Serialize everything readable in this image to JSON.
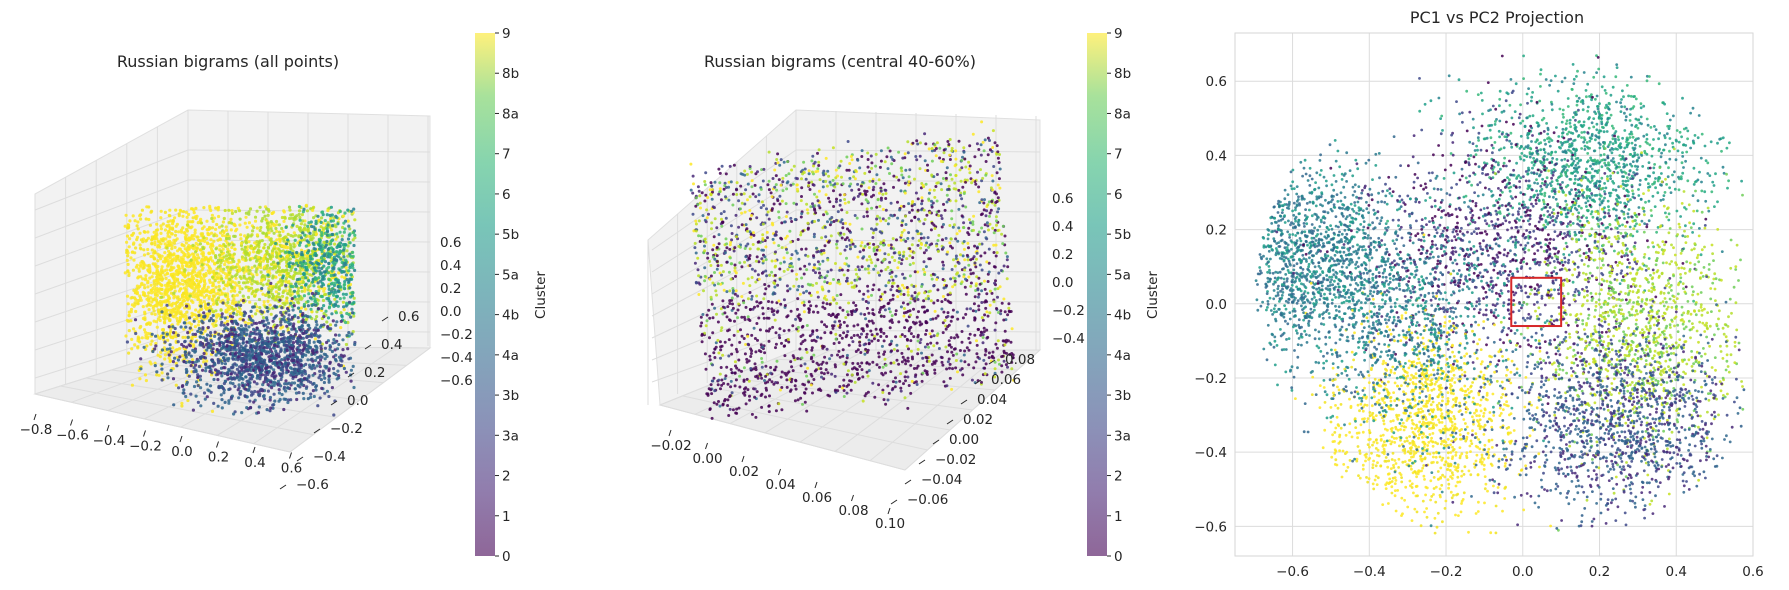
{
  "chart_data": [
    {
      "type": "scatter",
      "title": "Russian bigrams (all points)",
      "projection": "3d",
      "x_ticks": [
        "−0.8",
        "−0.6",
        "−0.4",
        "−0.2",
        "0.0",
        "0.2",
        "0.4",
        "0.6"
      ],
      "y_ticks": [
        "−0.6",
        "−0.4",
        "−0.2",
        "0.0",
        "0.2",
        "0.4",
        "0.6"
      ],
      "z_ticks": [
        "−0.6",
        "−0.4",
        "−0.2",
        "0.0",
        "0.2",
        "0.4",
        "0.6"
      ],
      "xlim": [
        -0.8,
        0.6
      ],
      "ylim": [
        -0.6,
        0.6
      ],
      "zlim": [
        -0.6,
        0.6
      ],
      "colorbar": {
        "label": "Cluster",
        "ticks": [
          "0",
          "1",
          "2",
          "3a",
          "3b",
          "4a",
          "4b",
          "5a",
          "5b",
          "6",
          "7",
          "8a",
          "8b",
          "9"
        ],
        "colormap": "viridis"
      },
      "grid": true
    },
    {
      "type": "scatter",
      "title": "Russian bigrams (central 40-60%)",
      "projection": "3d",
      "x_ticks": [
        "−0.02",
        "0.00",
        "0.02",
        "0.04",
        "0.06",
        "0.08",
        "0.10"
      ],
      "y_ticks": [
        "−0.06",
        "−0.04",
        "−0.02",
        "0.00",
        "0.02",
        "0.04",
        "0.06",
        "0.08"
      ],
      "z_ticks": [
        "−0.4",
        "−0.2",
        "0.0",
        "0.2",
        "0.4",
        "0.6"
      ],
      "xlim": [
        -0.02,
        0.1
      ],
      "ylim": [
        -0.06,
        0.08
      ],
      "zlim": [
        -0.4,
        0.6
      ],
      "colorbar": {
        "label": "Cluster",
        "ticks": [
          "0",
          "1",
          "2",
          "3a",
          "3b",
          "4a",
          "4b",
          "5a",
          "5b",
          "6",
          "7",
          "8a",
          "8b",
          "9"
        ],
        "colormap": "viridis"
      },
      "grid": true
    },
    {
      "type": "scatter",
      "title": "PC1 vs PC2 Projection",
      "x_ticks": [
        "−0.6",
        "−0.4",
        "−0.2",
        "0.0",
        "0.2",
        "0.4",
        "0.6"
      ],
      "y_ticks": [
        "−0.6",
        "−0.4",
        "−0.2",
        "0.0",
        "0.2",
        "0.4",
        "0.6"
      ],
      "xlim": [
        -0.75,
        0.6
      ],
      "ylim": [
        -0.68,
        0.73
      ],
      "highlight_box": {
        "x": [
          -0.03,
          0.1
        ],
        "y": [
          -0.06,
          0.07
        ],
        "color": "#d62728"
      },
      "grid": true
    }
  ]
}
